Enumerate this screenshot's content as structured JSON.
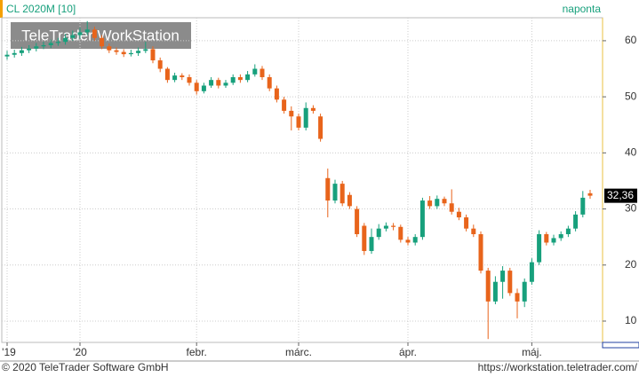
{
  "chart_data": {
    "type": "candlestick",
    "title": "CL 2020M [10]",
    "interval": "naponta",
    "watermark": "TeleTrader WorkStation",
    "categories": [
      "'19",
      null,
      null,
      null,
      null,
      null,
      null,
      null,
      null,
      null,
      "'20",
      null,
      null,
      null,
      null,
      null,
      null,
      null,
      null,
      null,
      null,
      null,
      null,
      null,
      null,
      null,
      "febr.",
      null,
      null,
      null,
      null,
      null,
      null,
      null,
      null,
      null,
      null,
      null,
      null,
      null,
      "márc.",
      null,
      null,
      null,
      null,
      null,
      null,
      null,
      null,
      null,
      null,
      null,
      null,
      null,
      null,
      "ápr.",
      null,
      null,
      null,
      null,
      null,
      null,
      null,
      null,
      null,
      null,
      null,
      null,
      null,
      null,
      null,
      null,
      "máj.",
      null,
      null,
      null,
      null,
      null,
      null,
      null,
      null
    ],
    "open": [
      57.2,
      57.5,
      57.8,
      58.3,
      58.6,
      59.0,
      59.2,
      59.6,
      59.8,
      60.5,
      61.0,
      61.5,
      62.0,
      60.5,
      59.0,
      58.3,
      58.0,
      57.6,
      57.8,
      58.2,
      58.5,
      56.5,
      55.0,
      53.0,
      53.8,
      53.5,
      52.5,
      51.0,
      52.0,
      53.0,
      52.0,
      52.5,
      53.5,
      53.0,
      54.0,
      55.0,
      53.5,
      51.5,
      49.5,
      47.5,
      46.5,
      44.5,
      48.0,
      46.5,
      35.5,
      31.5,
      34.5,
      32.5,
      30.0,
      27.0,
      22.5,
      25.0,
      26.5,
      27.0,
      26.8,
      24.5,
      24.0,
      25.0,
      31.5,
      30.5,
      31.8,
      31.0,
      29.5,
      28.5,
      26.5,
      25.5,
      19.0,
      13.5,
      17.0,
      19.0,
      15.0,
      13.5,
      17.0,
      20.5,
      25.5,
      24.0,
      24.8,
      25.5,
      26.5,
      29.0,
      32.8
    ],
    "high": [
      58.2,
      58.4,
      58.9,
      59.2,
      59.6,
      59.8,
      60.2,
      60.5,
      61.2,
      61.8,
      62.3,
      63.5,
      62.5,
      61.0,
      59.5,
      58.8,
      58.5,
      58.4,
      58.8,
      59.8,
      59.0,
      57.0,
      55.3,
      54.3,
      54.2,
      54.0,
      53.0,
      52.5,
      53.5,
      53.4,
      53.0,
      54.0,
      54.0,
      54.6,
      55.8,
      55.5,
      54.0,
      52.0,
      50.0,
      48.3,
      47.0,
      49.0,
      48.5,
      47.0,
      37.2,
      35.2,
      35.0,
      33.0,
      30.5,
      27.5,
      26.5,
      27.3,
      27.6,
      27.5,
      27.2,
      25.0,
      25.5,
      32.0,
      32.3,
      32.4,
      32.2,
      33.5,
      30.2,
      29.0,
      27.2,
      26.0,
      19.5,
      18.0,
      19.8,
      19.5,
      15.8,
      17.6,
      21.2,
      26.2,
      25.9,
      25.4,
      26.0,
      27.0,
      29.6,
      33.2,
      33.4
    ],
    "low": [
      56.6,
      57.0,
      57.3,
      57.8,
      58.1,
      58.5,
      58.7,
      59.1,
      59.3,
      60.0,
      60.4,
      61.0,
      60.0,
      58.5,
      57.8,
      57.5,
      57.1,
      57.2,
      57.3,
      57.8,
      56.0,
      54.4,
      52.5,
      52.6,
      53.0,
      52.0,
      50.4,
      50.6,
      51.6,
      51.5,
      51.6,
      52.1,
      52.5,
      52.6,
      53.6,
      53.0,
      51.0,
      49.0,
      47.0,
      44.0,
      44.0,
      44.0,
      47.0,
      42.0,
      28.5,
      31.0,
      30.5,
      30.0,
      25.0,
      21.8,
      22.0,
      24.5,
      26.0,
      26.2,
      24.0,
      23.5,
      23.5,
      24.5,
      30.0,
      30.0,
      30.5,
      29.0,
      28.0,
      26.0,
      25.0,
      18.5,
      6.8,
      13.0,
      14.0,
      14.5,
      10.5,
      12.5,
      16.5,
      20.0,
      23.5,
      23.5,
      24.3,
      25.0,
      26.0,
      28.5,
      31.8
    ],
    "close": [
      57.5,
      57.8,
      58.3,
      58.6,
      59.0,
      59.2,
      59.6,
      59.8,
      60.5,
      61.0,
      61.5,
      62.0,
      60.5,
      59.0,
      58.3,
      58.0,
      57.6,
      57.8,
      58.2,
      58.5,
      56.5,
      55.0,
      53.0,
      53.8,
      53.5,
      52.5,
      51.0,
      52.0,
      53.0,
      52.0,
      52.5,
      53.5,
      53.0,
      54.0,
      55.0,
      53.5,
      51.5,
      49.5,
      47.5,
      46.5,
      44.5,
      48.0,
      47.5,
      42.5,
      31.5,
      34.5,
      31.0,
      30.5,
      25.5,
      22.5,
      25.0,
      26.5,
      27.0,
      26.8,
      24.5,
      24.0,
      25.0,
      31.5,
      30.5,
      31.8,
      31.0,
      29.5,
      28.5,
      26.5,
      25.5,
      19.0,
      13.5,
      17.0,
      19.0,
      15.0,
      13.5,
      17.0,
      20.5,
      25.5,
      24.0,
      24.8,
      25.5,
      26.5,
      29.0,
      32.0,
      32.36
    ],
    "last_label": "32,36",
    "up_color": "#17a07c",
    "down_color": "#e8641b",
    "ylim": [
      6.2,
      64.1
    ],
    "yticks": [
      10,
      20,
      30,
      40,
      50,
      60
    ],
    "grid": true
  },
  "footer": {
    "left": "© 2020 TeleTrader Software GmbH",
    "right": "https://workstation.teletrader.com/"
  }
}
